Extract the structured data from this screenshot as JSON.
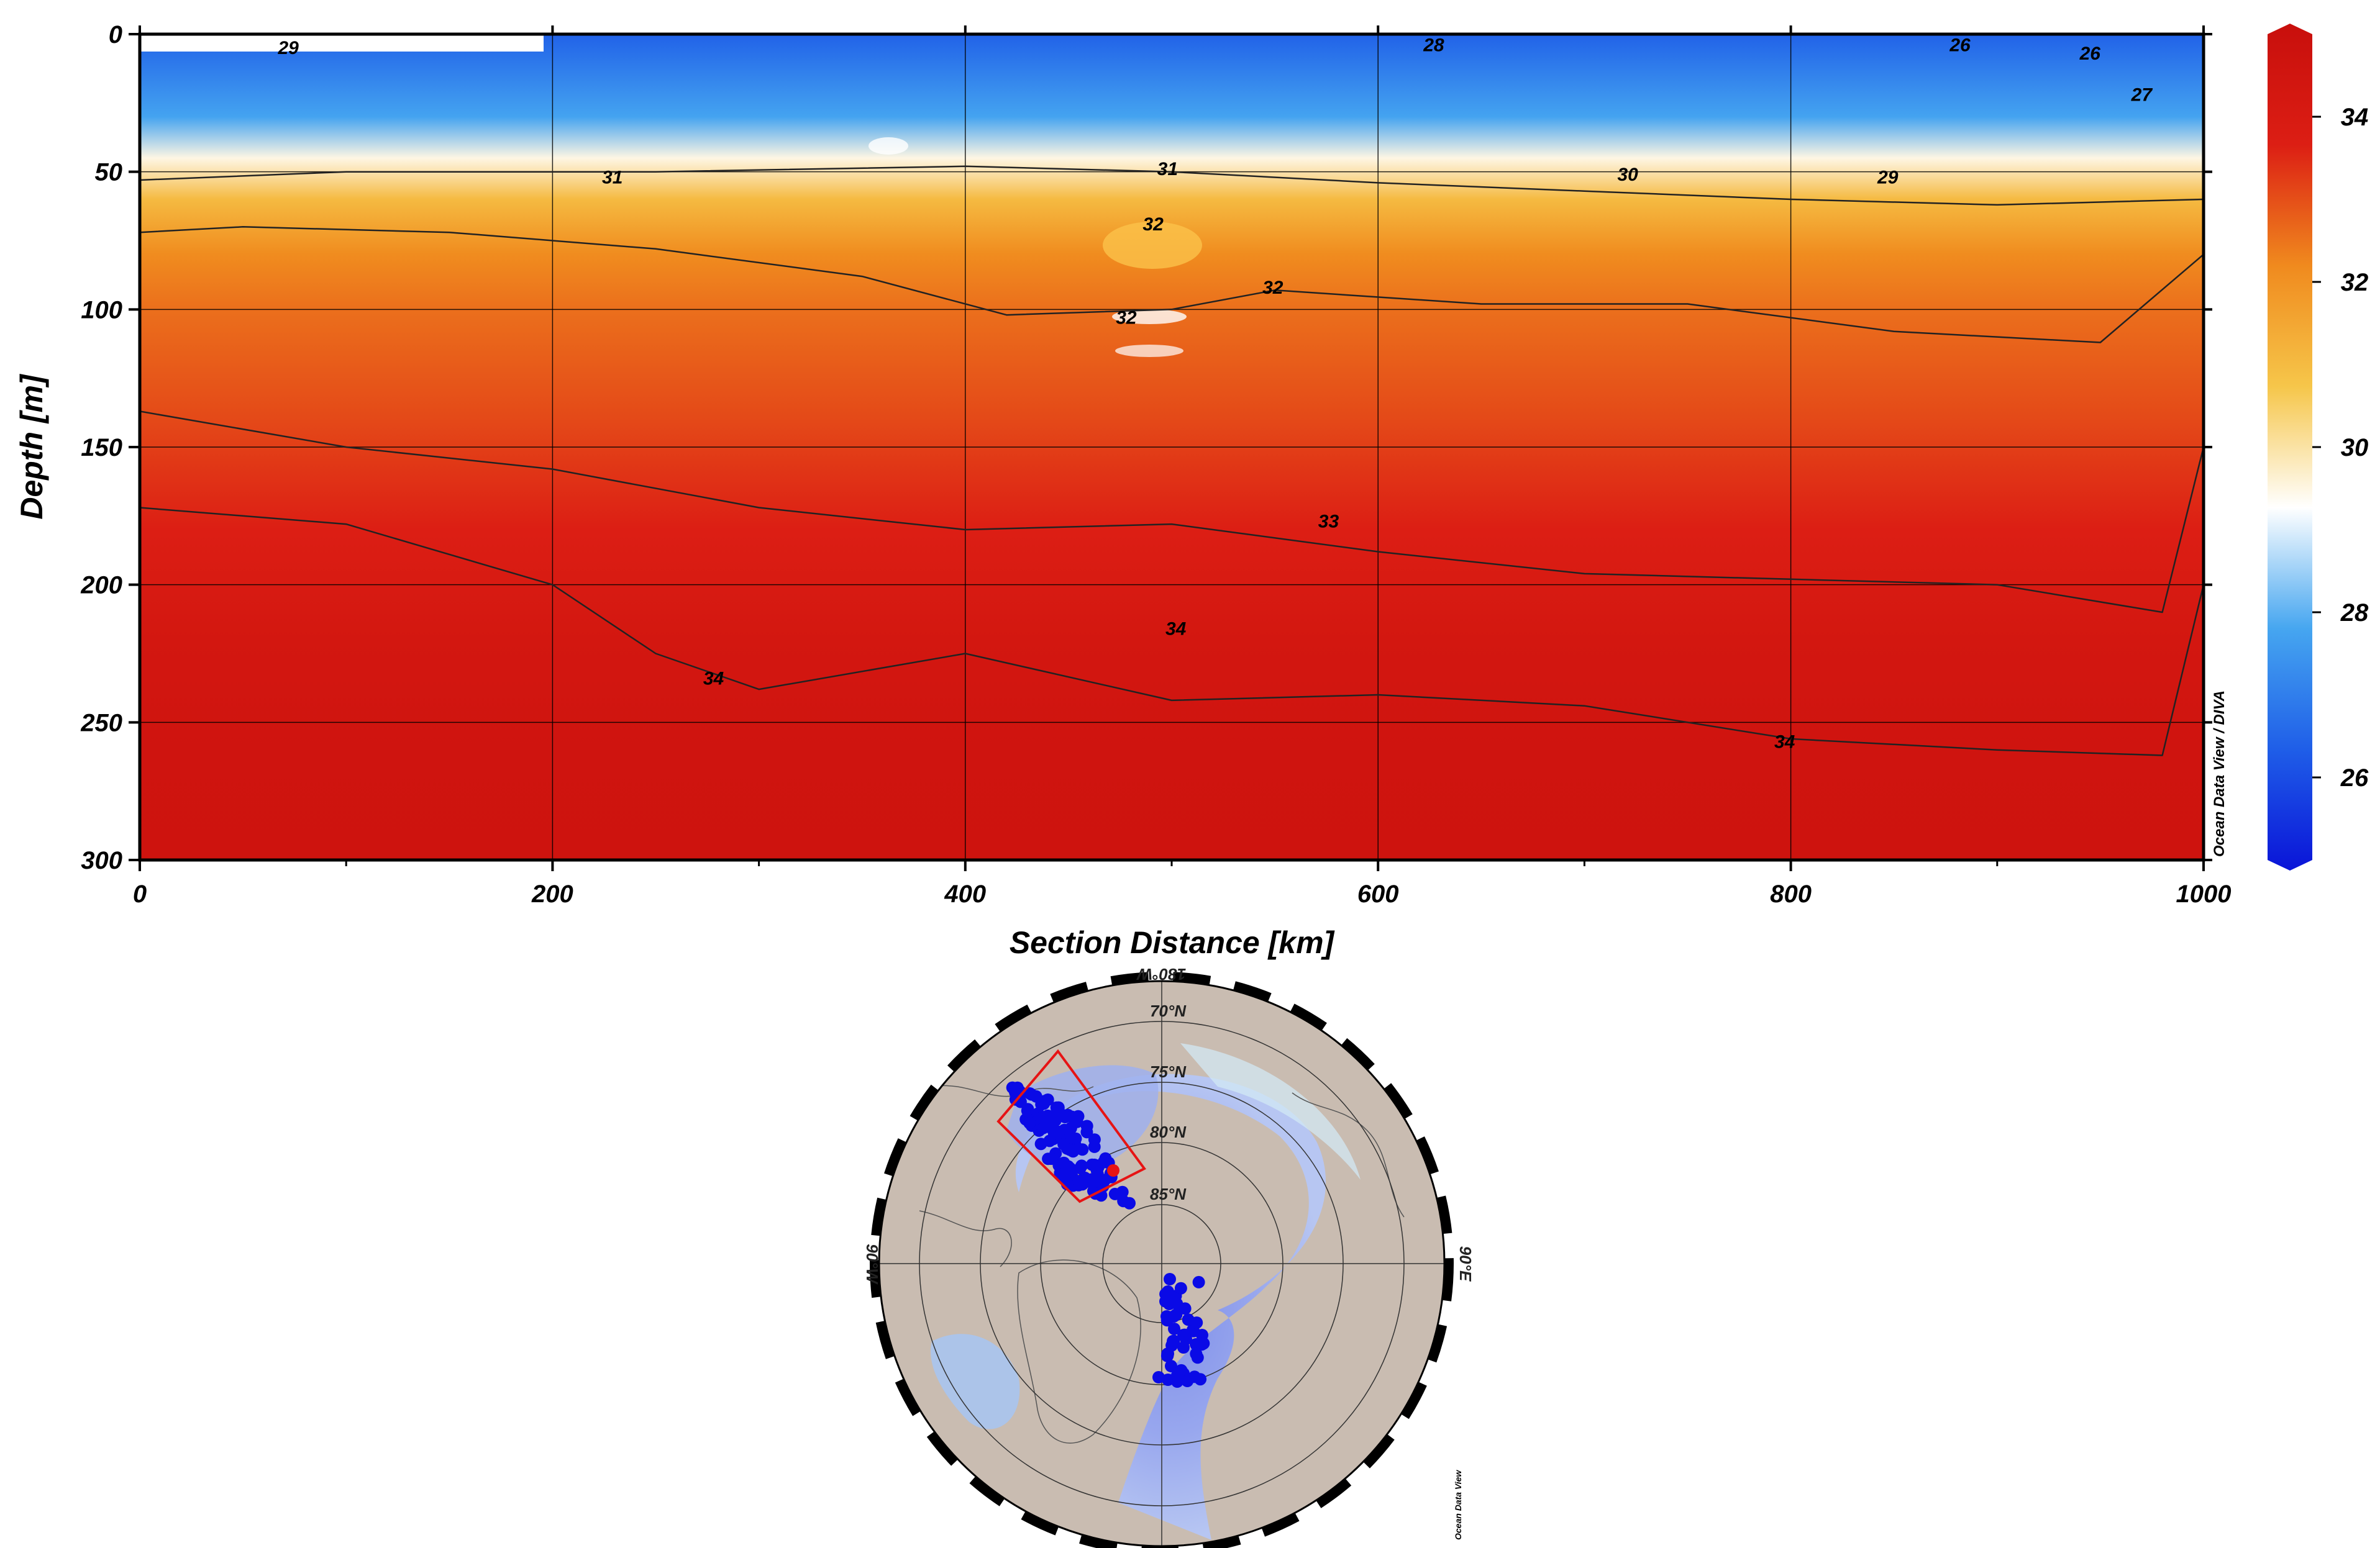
{
  "chart_data": {
    "type": "heatmap",
    "xlabel": "Section Distance [km]",
    "ylabel": "Depth [m]",
    "xlim": [
      0,
      1000
    ],
    "ylim": [
      300,
      0
    ],
    "x_ticks": [
      "0",
      "200",
      "400",
      "600",
      "800",
      "1000"
    ],
    "y_ticks": [
      "0",
      "50",
      "100",
      "150",
      "200",
      "250",
      "300"
    ],
    "grid": true,
    "colorbar": {
      "range": [
        25,
        35
      ],
      "ticks": [
        "26",
        "28",
        "30",
        "32",
        "34"
      ],
      "colors": [
        "#0a14d8",
        "#1f5ee8",
        "#46a6f0",
        "#ffffff",
        "#f6c64a",
        "#f08a1e",
        "#dc1e14",
        "#c80f0c"
      ]
    },
    "field_profile": [
      {
        "depth": 0,
        "value": 26.5
      },
      {
        "depth": 30,
        "value": 27.8
      },
      {
        "depth": 45,
        "value": 29.5
      },
      {
        "depth": 60,
        "value": 31.0
      },
      {
        "depth": 80,
        "value": 32.1
      },
      {
        "depth": 100,
        "value": 32.5
      },
      {
        "depth": 140,
        "value": 33.0
      },
      {
        "depth": 180,
        "value": 33.6
      },
      {
        "depth": 220,
        "value": 34.2
      },
      {
        "depth": 260,
        "value": 34.5
      },
      {
        "depth": 300,
        "value": 34.6
      }
    ],
    "contours": [
      {
        "level": "31",
        "x": [
          0,
          100,
          250,
          400,
          500,
          600,
          700,
          800,
          900,
          1000
        ],
        "y": [
          53,
          50,
          50,
          48,
          50,
          54,
          57,
          60,
          62,
          60
        ]
      },
      {
        "level": "32",
        "x": [
          0,
          50,
          150,
          250,
          350,
          420,
          500,
          550,
          650,
          750,
          850,
          950,
          1000
        ],
        "y": [
          72,
          70,
          72,
          78,
          88,
          102,
          100,
          93,
          98,
          98,
          108,
          112,
          80
        ]
      },
      {
        "level": "33",
        "x": [
          0,
          100,
          200,
          300,
          400,
          500,
          600,
          700,
          800,
          900,
          980,
          1000
        ],
        "y": [
          137,
          150,
          158,
          172,
          180,
          178,
          188,
          196,
          198,
          200,
          210,
          150
        ]
      },
      {
        "level": "34",
        "x": [
          0,
          100,
          200,
          250,
          300,
          400,
          500,
          600,
          700,
          800,
          900,
          980,
          1000
        ],
        "y": [
          172,
          178,
          200,
          225,
          238,
          225,
          242,
          240,
          244,
          256,
          260,
          262,
          200
        ]
      }
    ],
    "contour_labels": [
      {
        "text": "29",
        "x": 72,
        "y": 5
      },
      {
        "text": "28",
        "x": 627,
        "y": 4
      },
      {
        "text": "26",
        "x": 882,
        "y": 4
      },
      {
        "text": "26",
        "x": 945,
        "y": 7
      },
      {
        "text": "27",
        "x": 970,
        "y": 22
      },
      {
        "text": "31",
        "x": 229,
        "y": 52
      },
      {
        "text": "31",
        "x": 498,
        "y": 49
      },
      {
        "text": "30",
        "x": 721,
        "y": 51
      },
      {
        "text": "29",
        "x": 847,
        "y": 52
      },
      {
        "text": "32",
        "x": 491,
        "y": 69
      },
      {
        "text": "32",
        "x": 549,
        "y": 92
      },
      {
        "text": "32",
        "x": 478,
        "y": 103
      },
      {
        "text": "33",
        "x": 576,
        "y": 177
      },
      {
        "text": "34",
        "x": 502,
        "y": 216
      },
      {
        "text": "34",
        "x": 278,
        "y": 234
      },
      {
        "text": "34",
        "x": 797,
        "y": 257
      }
    ]
  },
  "map": {
    "label_top": "180°W",
    "label_left": "90°W",
    "label_right": "90°E",
    "lat_labels": [
      "70°N",
      "75°N",
      "80°N",
      "85°N"
    ],
    "colors": {
      "land": "#c9bcb1",
      "ocean_deep": "#8c96e6",
      "shelf": "#d2e8f4",
      "stations": "#0a0ae6",
      "section_box": "#e61414"
    }
  },
  "credits": {
    "main": "Ocean Data View / DIVA",
    "map": "Ocean Data View"
  }
}
